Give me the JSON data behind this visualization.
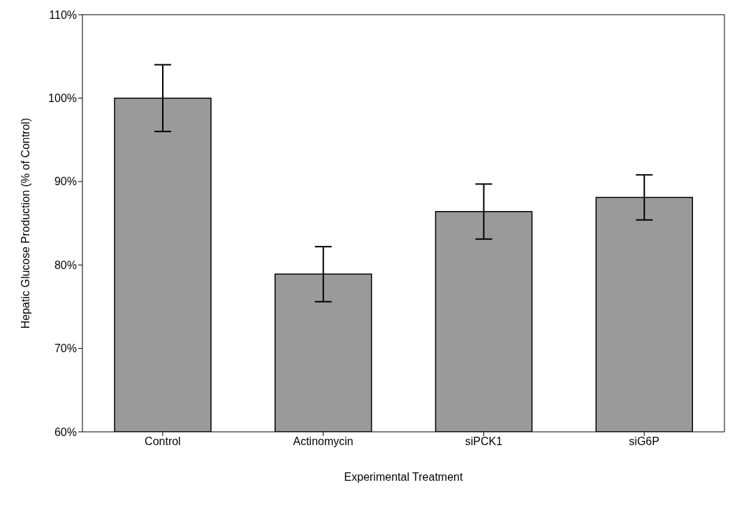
{
  "chart_data": {
    "type": "bar",
    "xlabel": "Experimental Treatment",
    "ylabel": "Hepatic Glucose Production (% of Control)",
    "categories": [
      "Control",
      "Actinomycin",
      "siPCK1",
      "siG6P"
    ],
    "values": [
      100,
      78.9,
      86.4,
      88.1
    ],
    "errors": [
      4,
      3.3,
      3.3,
      2.7
    ],
    "color": "#9a9a9a",
    "ylim": [
      60,
      110
    ],
    "yticks": [
      {
        "value": 60,
        "label": "60%"
      },
      {
        "value": 70,
        "label": "70%"
      },
      {
        "value": 80,
        "label": "80%"
      },
      {
        "value": 90,
        "label": "90%"
      },
      {
        "value": 100,
        "label": "100%"
      },
      {
        "value": 110,
        "label": "110%"
      }
    ],
    "grid": false,
    "legend": false
  }
}
